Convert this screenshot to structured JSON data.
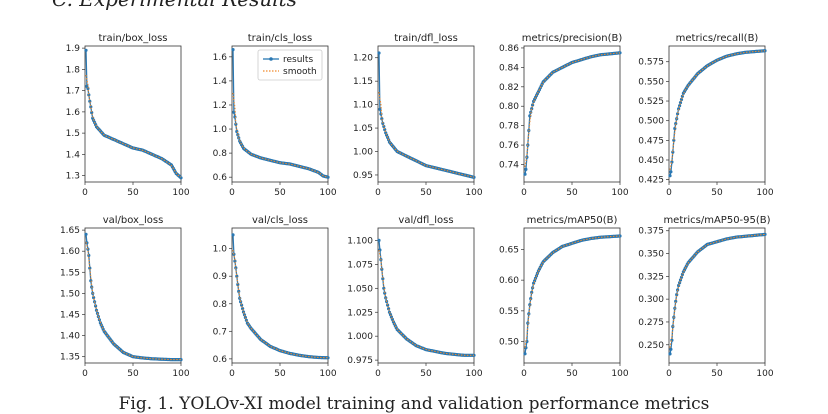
{
  "page": {
    "section_heading": "C.  Experimental Results",
    "caption": "Fig. 1. YOLOv-XI model training and validation performance metrics"
  },
  "colors": {
    "results": "#2a78b3",
    "smooth": "#f08a2c"
  },
  "legend": {
    "results": "results",
    "smooth": "smooth"
  },
  "chart_data": [
    {
      "type": "line",
      "title": "train/box_loss",
      "xlim": [
        0,
        100
      ],
      "ylim": [
        1.27,
        1.91
      ],
      "xticks": [
        0,
        50,
        100
      ],
      "yticks": [
        1.3,
        1.4,
        1.5,
        1.6,
        1.7,
        1.8,
        1.9
      ],
      "points": [
        [
          1,
          1.89
        ],
        [
          2,
          1.72
        ],
        [
          3,
          1.71
        ],
        [
          5,
          1.65
        ],
        [
          8,
          1.57
        ],
        [
          12,
          1.53
        ],
        [
          20,
          1.49
        ],
        [
          30,
          1.47
        ],
        [
          40,
          1.45
        ],
        [
          50,
          1.43
        ],
        [
          60,
          1.42
        ],
        [
          70,
          1.4
        ],
        [
          80,
          1.38
        ],
        [
          90,
          1.35
        ],
        [
          95,
          1.31
        ],
        [
          100,
          1.29
        ]
      ]
    },
    {
      "type": "line",
      "title": "train/cls_loss",
      "xlim": [
        0,
        100
      ],
      "ylim": [
        0.56,
        1.69
      ],
      "xticks": [
        0,
        50,
        100
      ],
      "yticks": [
        0.6,
        0.8,
        1.0,
        1.2,
        1.4,
        1.6
      ],
      "legend": true,
      "points": [
        [
          1,
          1.66
        ],
        [
          2,
          1.14
        ],
        [
          3,
          1.1
        ],
        [
          5,
          0.98
        ],
        [
          8,
          0.9
        ],
        [
          12,
          0.84
        ],
        [
          20,
          0.79
        ],
        [
          30,
          0.76
        ],
        [
          40,
          0.74
        ],
        [
          50,
          0.72
        ],
        [
          60,
          0.71
        ],
        [
          70,
          0.69
        ],
        [
          80,
          0.67
        ],
        [
          90,
          0.64
        ],
        [
          95,
          0.61
        ],
        [
          100,
          0.6
        ]
      ]
    },
    {
      "type": "line",
      "title": "train/dfl_loss",
      "xlim": [
        0,
        100
      ],
      "ylim": [
        0.935,
        1.225
      ],
      "xticks": [
        0,
        50,
        100
      ],
      "yticks": [
        0.95,
        1.0,
        1.05,
        1.1,
        1.15,
        1.2
      ],
      "points": [
        [
          1,
          1.21
        ],
        [
          2,
          1.09
        ],
        [
          3,
          1.08
        ],
        [
          5,
          1.06
        ],
        [
          8,
          1.04
        ],
        [
          12,
          1.02
        ],
        [
          20,
          1.0
        ],
        [
          30,
          0.99
        ],
        [
          40,
          0.98
        ],
        [
          50,
          0.97
        ],
        [
          60,
          0.965
        ],
        [
          70,
          0.96
        ],
        [
          80,
          0.955
        ],
        [
          90,
          0.95
        ],
        [
          100,
          0.945
        ]
      ]
    },
    {
      "type": "line",
      "title": "metrics/precision(B)",
      "xlim": [
        0,
        100
      ],
      "ylim": [
        0.722,
        0.862
      ],
      "xticks": [
        0,
        50,
        100
      ],
      "yticks": [
        0.74,
        0.76,
        0.78,
        0.8,
        0.82,
        0.84,
        0.86
      ],
      "points": [
        [
          1,
          0.73
        ],
        [
          2,
          0.735
        ],
        [
          4,
          0.76
        ],
        [
          6,
          0.79
        ],
        [
          10,
          0.805
        ],
        [
          15,
          0.815
        ],
        [
          20,
          0.825
        ],
        [
          30,
          0.835
        ],
        [
          40,
          0.84
        ],
        [
          50,
          0.845
        ],
        [
          60,
          0.848
        ],
        [
          70,
          0.851
        ],
        [
          80,
          0.853
        ],
        [
          90,
          0.854
        ],
        [
          100,
          0.855
        ]
      ]
    },
    {
      "type": "line",
      "title": "metrics/recall(B)",
      "xlim": [
        0,
        100
      ],
      "ylim": [
        0.422,
        0.595
      ],
      "xticks": [
        0,
        50,
        100
      ],
      "yticks": [
        0.425,
        0.45,
        0.475,
        0.5,
        0.525,
        0.55,
        0.575
      ],
      "points": [
        [
          1,
          0.43
        ],
        [
          2,
          0.435
        ],
        [
          4,
          0.46
        ],
        [
          6,
          0.49
        ],
        [
          10,
          0.515
        ],
        [
          15,
          0.535
        ],
        [
          20,
          0.545
        ],
        [
          30,
          0.56
        ],
        [
          40,
          0.57
        ],
        [
          50,
          0.577
        ],
        [
          60,
          0.582
        ],
        [
          70,
          0.585
        ],
        [
          80,
          0.587
        ],
        [
          90,
          0.588
        ],
        [
          100,
          0.589
        ]
      ]
    },
    {
      "type": "line",
      "title": "val/box_loss",
      "xlim": [
        0,
        100
      ],
      "ylim": [
        1.335,
        1.655
      ],
      "xticks": [
        0,
        50,
        100
      ],
      "yticks": [
        1.35,
        1.4,
        1.45,
        1.5,
        1.55,
        1.6,
        1.65
      ],
      "points": [
        [
          1,
          1.64
        ],
        [
          2,
          1.62
        ],
        [
          4,
          1.59
        ],
        [
          6,
          1.53
        ],
        [
          8,
          1.5
        ],
        [
          12,
          1.46
        ],
        [
          16,
          1.43
        ],
        [
          20,
          1.41
        ],
        [
          30,
          1.38
        ],
        [
          40,
          1.36
        ],
        [
          50,
          1.35
        ],
        [
          60,
          1.347
        ],
        [
          70,
          1.345
        ],
        [
          80,
          1.344
        ],
        [
          90,
          1.343
        ],
        [
          100,
          1.343
        ]
      ]
    },
    {
      "type": "line",
      "title": "val/cls_loss",
      "xlim": [
        0,
        100
      ],
      "ylim": [
        0.585,
        1.075
      ],
      "xticks": [
        0,
        50,
        100
      ],
      "yticks": [
        0.6,
        0.7,
        0.8,
        0.9,
        1.0
      ],
      "points": [
        [
          1,
          1.05
        ],
        [
          2,
          0.98
        ],
        [
          4,
          0.93
        ],
        [
          6,
          0.87
        ],
        [
          8,
          0.82
        ],
        [
          12,
          0.77
        ],
        [
          16,
          0.73
        ],
        [
          20,
          0.71
        ],
        [
          30,
          0.67
        ],
        [
          40,
          0.645
        ],
        [
          50,
          0.63
        ],
        [
          60,
          0.62
        ],
        [
          70,
          0.613
        ],
        [
          80,
          0.608
        ],
        [
          90,
          0.605
        ],
        [
          100,
          0.604
        ]
      ]
    },
    {
      "type": "line",
      "title": "val/dfl_loss",
      "xlim": [
        0,
        100
      ],
      "ylim": [
        0.972,
        1.113
      ],
      "xticks": [
        0,
        50,
        100
      ],
      "yticks": [
        0.975,
        1.0,
        1.025,
        1.05,
        1.075,
        1.1
      ],
      "points": [
        [
          1,
          1.1
        ],
        [
          2,
          1.09
        ],
        [
          4,
          1.07
        ],
        [
          6,
          1.05
        ],
        [
          8,
          1.04
        ],
        [
          12,
          1.025
        ],
        [
          16,
          1.015
        ],
        [
          20,
          1.007
        ],
        [
          30,
          0.997
        ],
        [
          40,
          0.99
        ],
        [
          50,
          0.986
        ],
        [
          60,
          0.984
        ],
        [
          70,
          0.982
        ],
        [
          80,
          0.981
        ],
        [
          90,
          0.98
        ],
        [
          100,
          0.98
        ]
      ]
    },
    {
      "type": "line",
      "title": "metrics/mAP50(B)",
      "xlim": [
        0,
        100
      ],
      "ylim": [
        0.465,
        0.685
      ],
      "xticks": [
        0,
        50,
        100
      ],
      "yticks": [
        0.5,
        0.55,
        0.6,
        0.65
      ],
      "points": [
        [
          1,
          0.48
        ],
        [
          2,
          0.49
        ],
        [
          3,
          0.5
        ],
        [
          4,
          0.53
        ],
        [
          6,
          0.56
        ],
        [
          8,
          0.58
        ],
        [
          10,
          0.595
        ],
        [
          15,
          0.615
        ],
        [
          20,
          0.63
        ],
        [
          30,
          0.645
        ],
        [
          40,
          0.655
        ],
        [
          50,
          0.66
        ],
        [
          60,
          0.665
        ],
        [
          70,
          0.668
        ],
        [
          80,
          0.67
        ],
        [
          90,
          0.671
        ],
        [
          100,
          0.672
        ]
      ]
    },
    {
      "type": "line",
      "title": "metrics/mAP50-95(B)",
      "xlim": [
        0,
        100
      ],
      "ylim": [
        0.23,
        0.378
      ],
      "xticks": [
        0,
        50,
        100
      ],
      "yticks": [
        0.25,
        0.275,
        0.3,
        0.325,
        0.35,
        0.375
      ],
      "points": [
        [
          1,
          0.24
        ],
        [
          2,
          0.245
        ],
        [
          3,
          0.255
        ],
        [
          4,
          0.27
        ],
        [
          6,
          0.29
        ],
        [
          8,
          0.305
        ],
        [
          10,
          0.315
        ],
        [
          15,
          0.33
        ],
        [
          20,
          0.34
        ],
        [
          30,
          0.352
        ],
        [
          40,
          0.36
        ],
        [
          50,
          0.363
        ],
        [
          60,
          0.366
        ],
        [
          70,
          0.368
        ],
        [
          80,
          0.369
        ],
        [
          90,
          0.37
        ],
        [
          100,
          0.371
        ]
      ]
    }
  ]
}
